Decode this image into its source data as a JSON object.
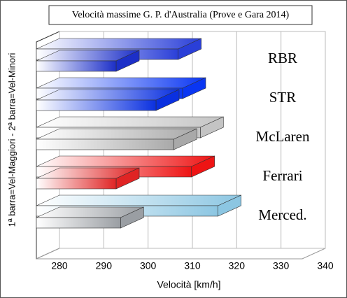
{
  "chart_data": {
    "type": "bar3d_horizontal",
    "title": "Velocità massime G. P. d'Australia (Prove e Gara 2014)",
    "x_label": "Velocità  [km/h]",
    "y_label": "1ª barra=Vel-Maggiori  -  2ª barra=Vel-Minori",
    "categories": [
      "RBR",
      "STR",
      "McLaren",
      "Ferrari",
      "Merced."
    ],
    "series": [
      {
        "colors": [
          "#2a3fd8",
          "#0a36f2",
          "#c4c4c4",
          "#ee1414",
          "#8cc6e2"
        ],
        "values": [
          312,
          313,
          317,
          315,
          321
        ]
      },
      {
        "colors": [
          "#1c2fc8",
          "#0a30e0",
          "#a9a9a9",
          "#e02424",
          "#9a9ea3"
        ],
        "values": [
          298,
          307,
          311,
          298,
          299
        ]
      }
    ],
    "xlim": [
      280,
      340
    ],
    "xticks": [
      280,
      290,
      300,
      310,
      320,
      330,
      340
    ],
    "grid": true
  }
}
